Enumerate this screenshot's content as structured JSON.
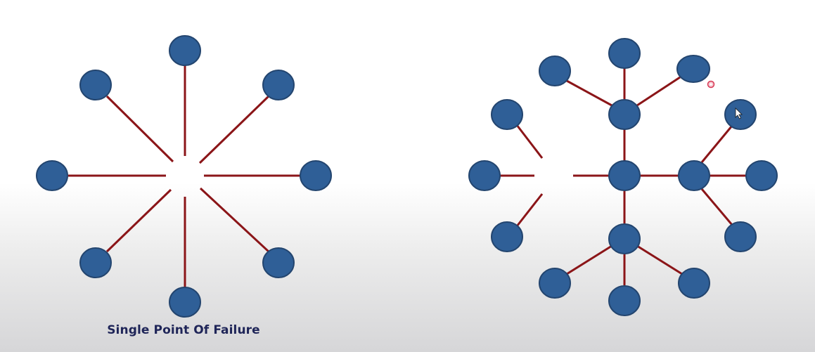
{
  "caption": "Single Point Of Failure",
  "colors": {
    "edge": "#8b1518",
    "node_fill": "#2f5f97",
    "node_stroke": "#23456f",
    "caption": "#1f2558"
  }
}
